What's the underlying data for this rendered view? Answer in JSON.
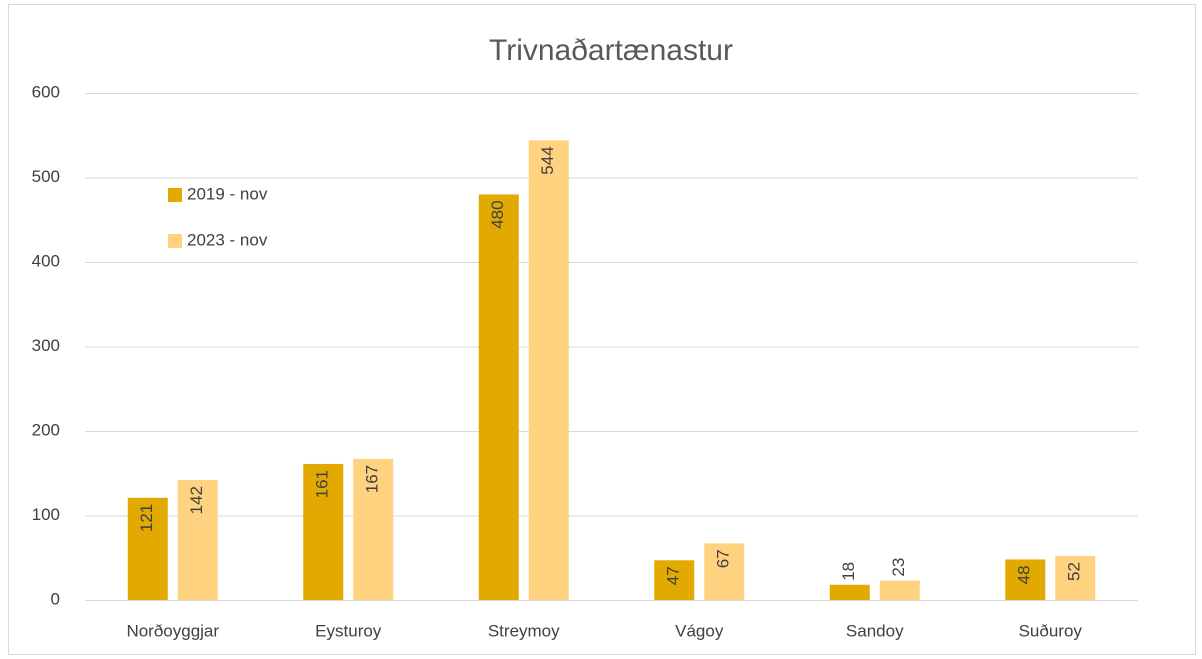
{
  "chart_data": {
    "type": "bar",
    "title": "Trivnaðartænastur",
    "categories": [
      "Norðoyggjar",
      "Eysturoy",
      "Streymoy",
      "Vágoy",
      "Sandoy",
      "Suðuroy"
    ],
    "series": [
      {
        "name": "2019 - nov",
        "color": "#e2aa00",
        "values": [
          121,
          161,
          480,
          47,
          18,
          48
        ]
      },
      {
        "name": "2023 - nov",
        "color": "#ffd280",
        "values": [
          142,
          167,
          544,
          67,
          23,
          52
        ]
      }
    ],
    "ylim": [
      0,
      600
    ],
    "yticks": [
      0,
      100,
      200,
      300,
      400,
      500,
      600
    ],
    "grid": true,
    "legend": "upper left"
  }
}
